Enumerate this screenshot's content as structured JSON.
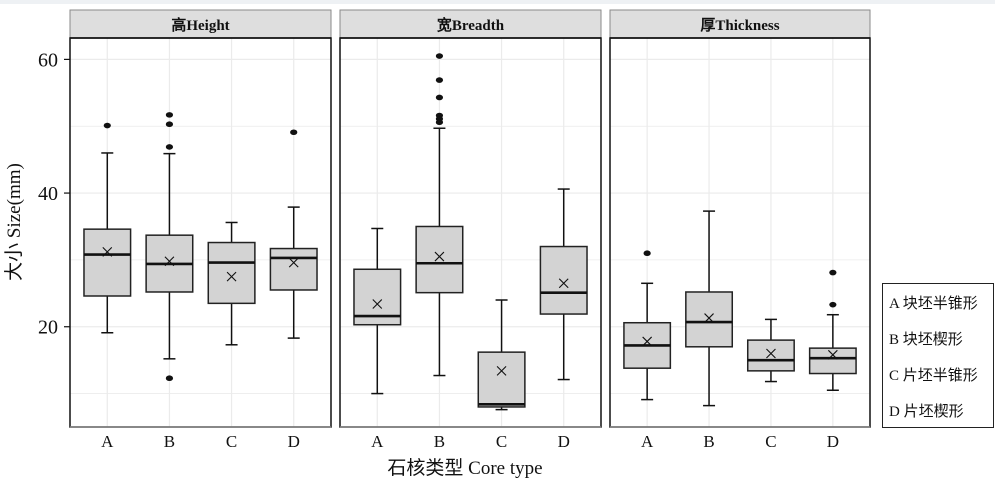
{
  "chart_data": {
    "type": "box",
    "xlabel": "石核类型 Core type",
    "ylabel": "大小 Size(mm)",
    "ylim": [
      5,
      63.2
    ],
    "yticks": [
      20,
      40,
      60
    ],
    "grid": true,
    "categories": [
      "A",
      "B",
      "C",
      "D"
    ],
    "legend": {
      "position": "right",
      "entries": [
        "A 块坯半锥形",
        "B 块坯楔形",
        "C 片坯半锥形",
        "D 片坯楔形"
      ]
    },
    "panels": [
      {
        "title": "高Height",
        "boxes": [
          {
            "category": "A",
            "whisker_low": 19.1,
            "q1": 24.6,
            "median": 30.8,
            "q3": 34.6,
            "whisker_high": 46.0,
            "mean": 31.2,
            "outliers": [
              50.1
            ]
          },
          {
            "category": "B",
            "whisker_low": 15.2,
            "q1": 25.2,
            "median": 29.4,
            "q3": 33.7,
            "whisker_high": 45.9,
            "mean": 29.8,
            "outliers": [
              51.7,
              50.3,
              46.9,
              12.3
            ]
          },
          {
            "category": "C",
            "whisker_low": 17.3,
            "q1": 23.5,
            "median": 29.6,
            "q3": 32.6,
            "whisker_high": 35.6,
            "mean": 27.5,
            "outliers": []
          },
          {
            "category": "D",
            "whisker_low": 18.3,
            "q1": 25.5,
            "median": 30.3,
            "q3": 31.7,
            "whisker_high": 37.9,
            "mean": 29.6,
            "outliers": [
              49.1
            ]
          }
        ]
      },
      {
        "title": "宽Breadth",
        "boxes": [
          {
            "category": "A",
            "whisker_low": 10.0,
            "q1": 20.3,
            "median": 21.6,
            "q3": 28.6,
            "whisker_high": 34.7,
            "mean": 23.4,
            "outliers": []
          },
          {
            "category": "B",
            "whisker_low": 12.7,
            "q1": 25.1,
            "median": 29.5,
            "q3": 35.0,
            "whisker_high": 49.7,
            "mean": 30.5,
            "outliers": [
              60.5,
              56.9,
              54.3,
              51.6,
              51.1,
              50.6
            ]
          },
          {
            "category": "C",
            "whisker_low": 7.6,
            "q1": 8.0,
            "median": 8.4,
            "q3": 16.2,
            "whisker_high": 24.0,
            "mean": 13.4,
            "outliers": []
          },
          {
            "category": "D",
            "whisker_low": 12.1,
            "q1": 21.9,
            "median": 25.1,
            "q3": 32.0,
            "whisker_high": 40.6,
            "mean": 26.5,
            "outliers": []
          }
        ]
      },
      {
        "title": "厚Thickness",
        "boxes": [
          {
            "category": "A",
            "whisker_low": 9.1,
            "q1": 13.8,
            "median": 17.2,
            "q3": 20.6,
            "whisker_high": 26.5,
            "mean": 17.8,
            "outliers": [
              31.0
            ]
          },
          {
            "category": "B",
            "whisker_low": 8.2,
            "q1": 17.0,
            "median": 20.7,
            "q3": 25.2,
            "whisker_high": 37.3,
            "mean": 21.3,
            "outliers": []
          },
          {
            "category": "C",
            "whisker_low": 11.8,
            "q1": 13.4,
            "median": 15.0,
            "q3": 18.0,
            "whisker_high": 21.1,
            "mean": 16.0,
            "outliers": []
          },
          {
            "category": "D",
            "whisker_low": 10.5,
            "q1": 13.0,
            "median": 15.3,
            "q3": 16.8,
            "whisker_high": 21.8,
            "mean": 15.8,
            "outliers": [
              28.1,
              23.3
            ]
          }
        ]
      }
    ],
    "colors": {
      "box_fill": "#d3d3d3",
      "strip_fill": "#dedede",
      "grid": "#ebebeb",
      "ink": "#111111"
    }
  }
}
